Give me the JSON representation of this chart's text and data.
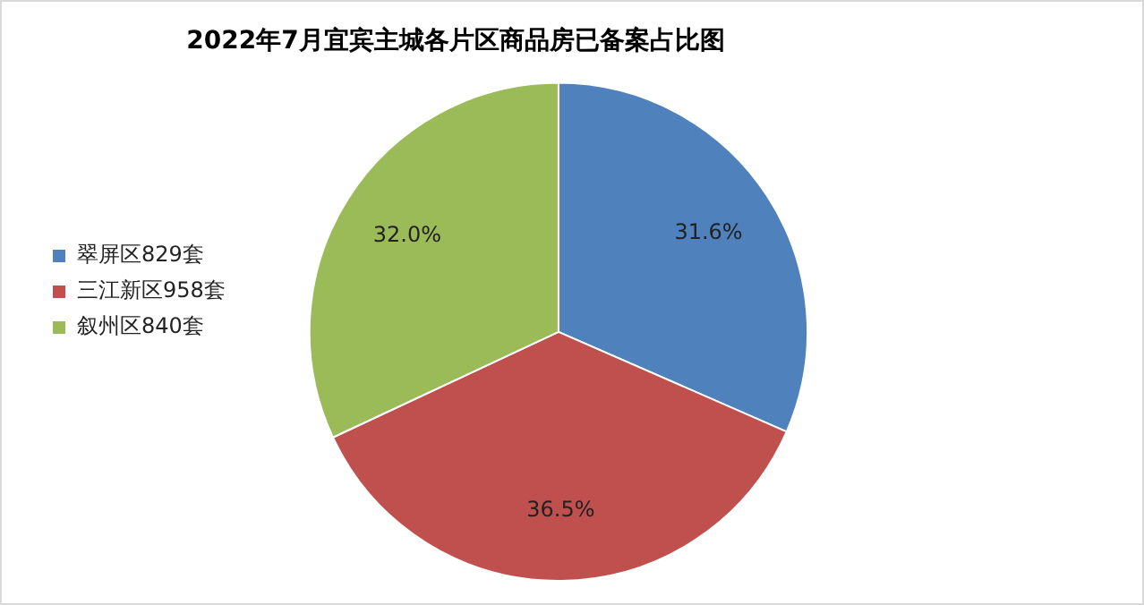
{
  "chart_data": {
    "type": "pie",
    "title": "2022年7月宜宾主城各片区商品房已备案占比图",
    "categories": [
      "翠屏区829套",
      "三江新区958套",
      "叙州区840套"
    ],
    "values": [
      31.6,
      36.5,
      32.0
    ],
    "colors": [
      "#4f81bd",
      "#c0504d",
      "#9bbb59"
    ],
    "value_labels": [
      "31.6%",
      "36.5%",
      "32.0%"
    ],
    "legend": "left"
  }
}
